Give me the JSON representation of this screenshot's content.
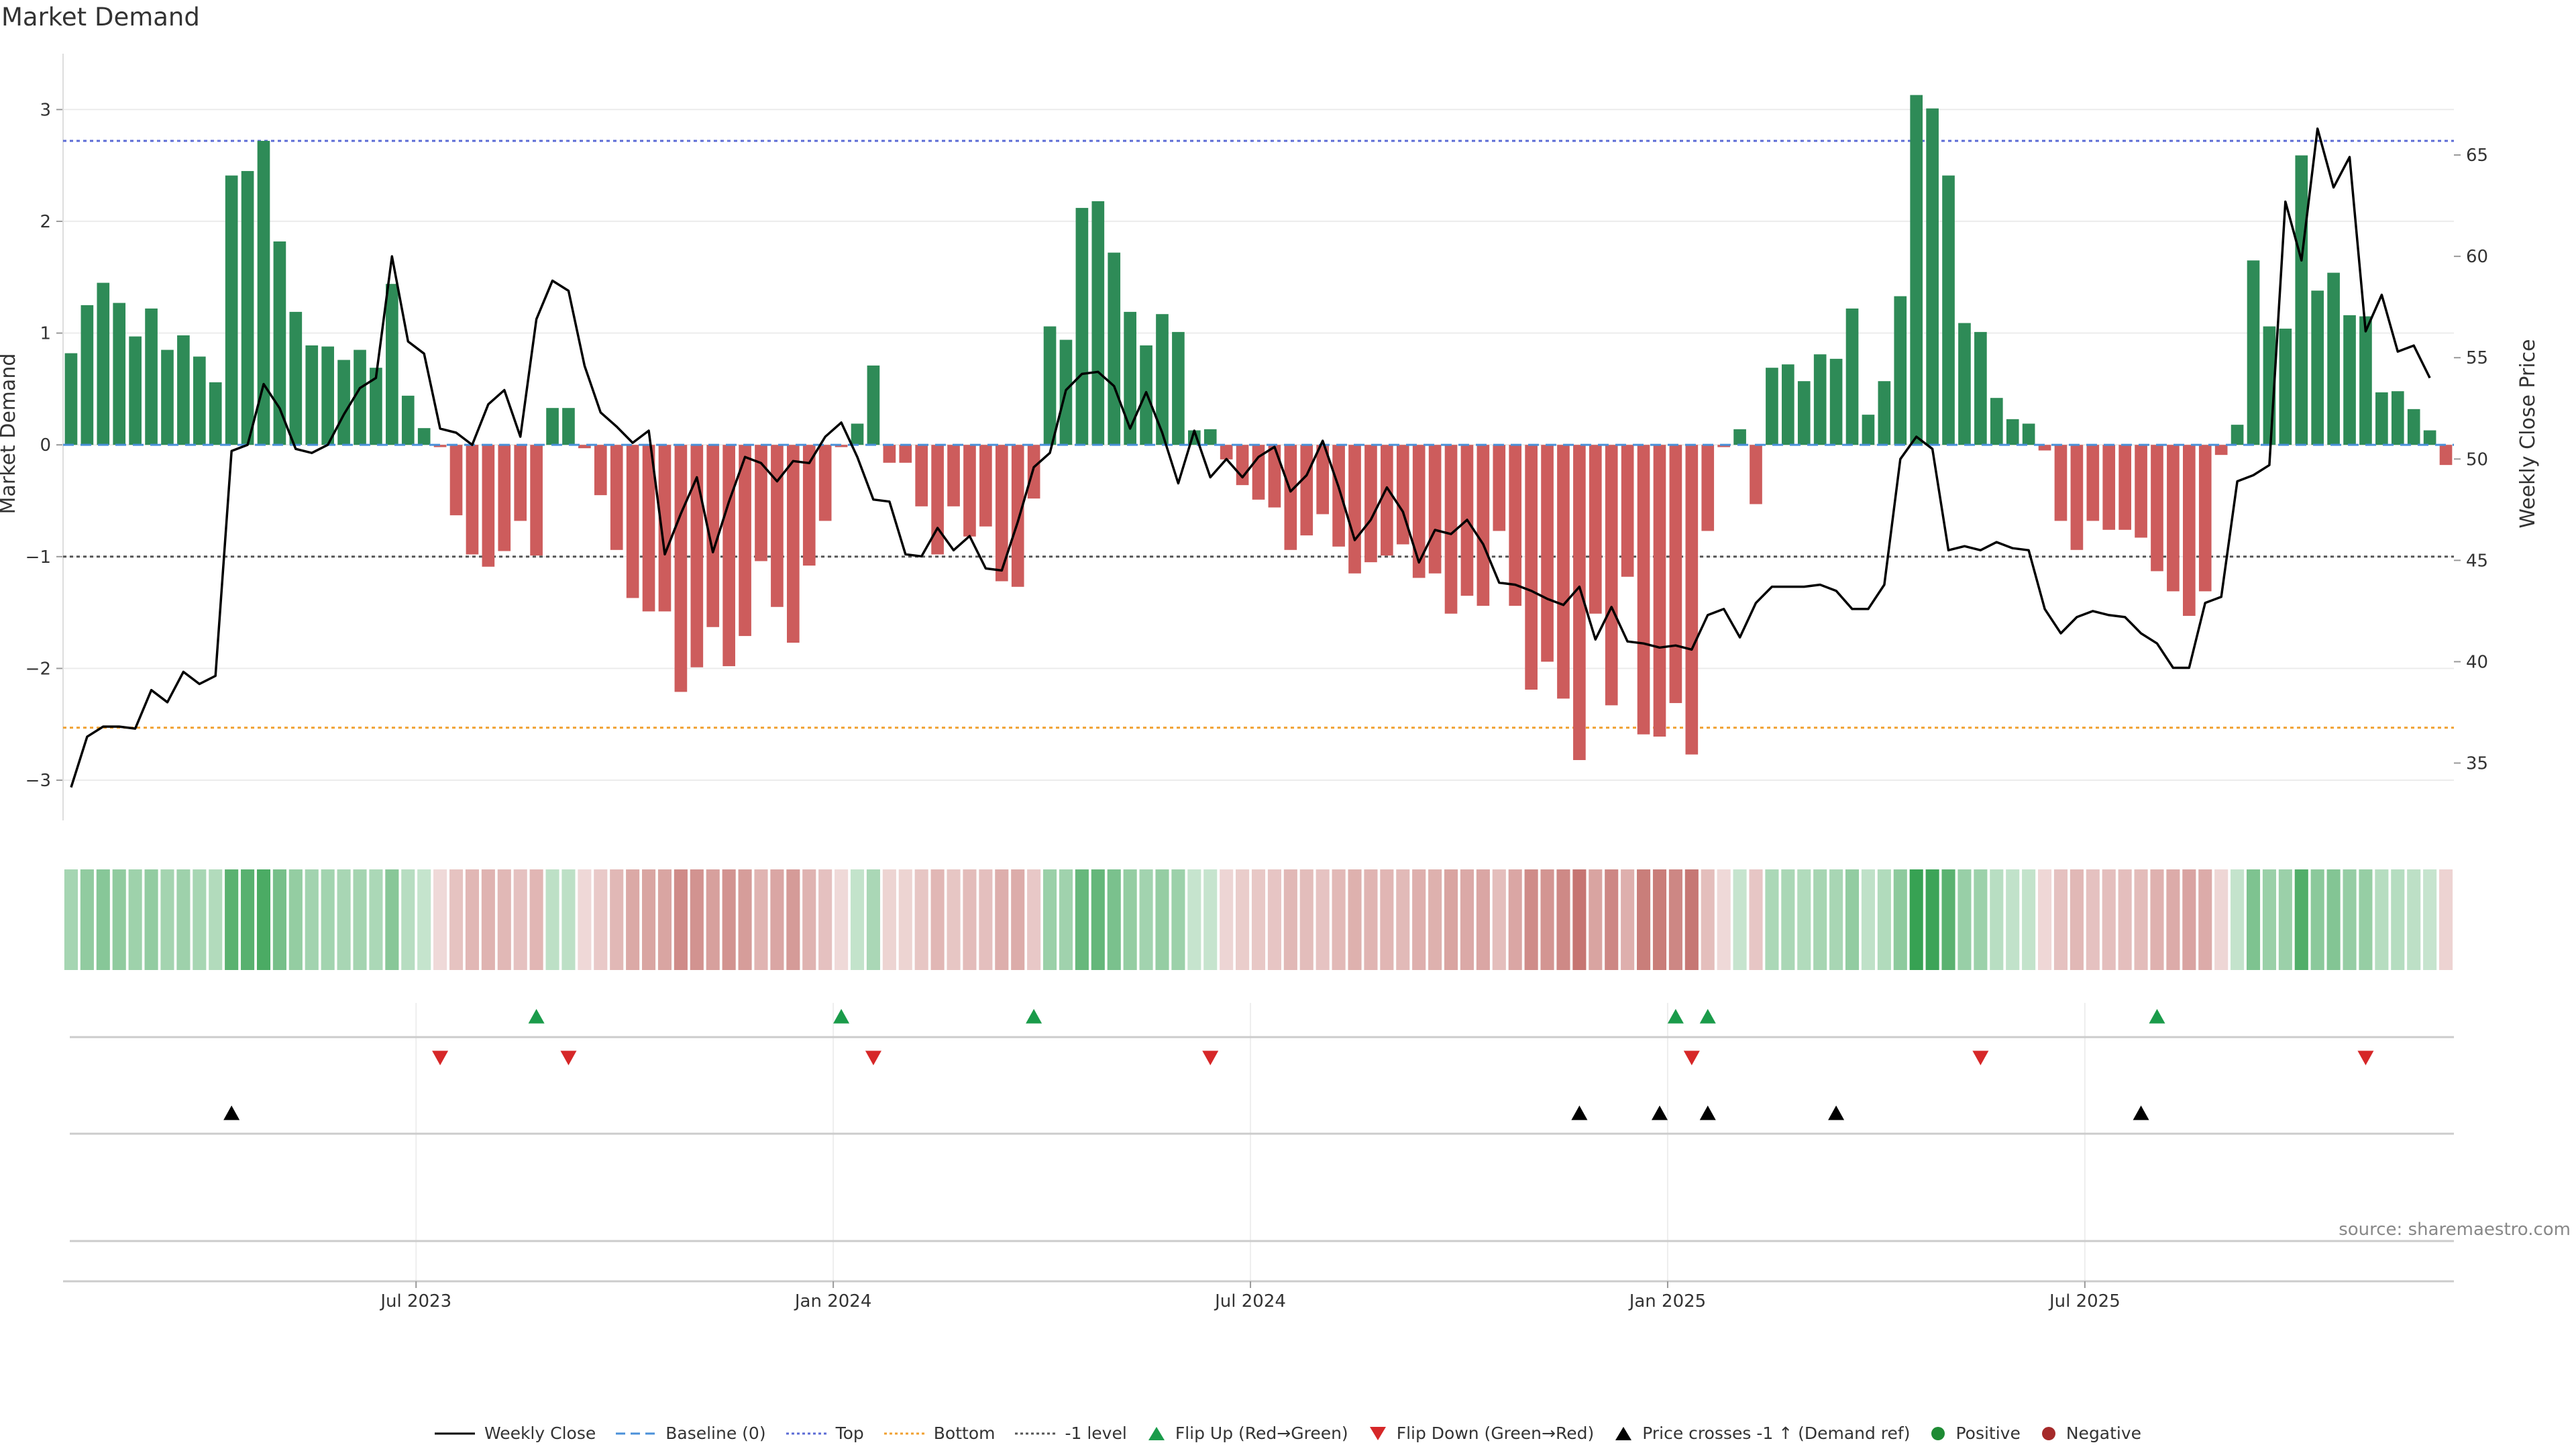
{
  "title": "Market Demand",
  "source_note": "source: sharemaestro.com",
  "colors": {
    "positive": "#2e8b57",
    "negative": "#cd5c5c",
    "price": "#000000",
    "baseline": "#4a90d9",
    "top": "#5b6bd5",
    "bottom": "#f0a030",
    "minus1": "#555555",
    "flip_up": "#1a9b4a",
    "flip_down": "#d62728",
    "cross": "#000000"
  },
  "legend": [
    {
      "label": "Weekly Close",
      "icon": "solid-line-icon"
    },
    {
      "label": "Baseline (0)",
      "icon": "dashed-line-icon"
    },
    {
      "label": "Top",
      "icon": "dotted-line-icon"
    },
    {
      "label": "Bottom",
      "icon": "dotted-line-icon"
    },
    {
      "label": "-1 level",
      "icon": "dotted-line-icon"
    },
    {
      "label": "Flip Up (Red→Green)",
      "icon": "triangle-up-icon"
    },
    {
      "label": "Flip Down (Green→Red)",
      "icon": "triangle-down-icon"
    },
    {
      "label": "Price crosses -1 ↑ (Demand ref)",
      "icon": "triangle-up-icon"
    },
    {
      "label": "Positive",
      "icon": "circle-icon"
    },
    {
      "label": "Negative",
      "icon": "circle-icon"
    }
  ],
  "chart_data": {
    "type": "bar",
    "title": "Market Demand",
    "ylabel": "Market Demand",
    "y2label": "Weekly Close Price",
    "ylim": [
      -3.3,
      3.5
    ],
    "y2lim": [
      32.5,
      70
    ],
    "yticks": [
      "−3",
      "−2",
      "−1",
      "0",
      "1",
      "2",
      "3"
    ],
    "y2ticks": [
      "35",
      "40",
      "45",
      "50",
      "55",
      "60",
      "65"
    ],
    "xticks": [
      {
        "label": "Jul 2023",
        "week": 22
      },
      {
        "label": "Jan 2024",
        "week": 48
      },
      {
        "label": "Jul 2024",
        "week": 74
      },
      {
        "label": "Jan 2025",
        "week": 100
      },
      {
        "label": "Jul 2025",
        "week": 126
      }
    ],
    "levels": {
      "baseline": 0,
      "top": 2.72,
      "bottom": -2.53,
      "minus1": -1
    },
    "demand": [
      0.82,
      1.25,
      1.45,
      1.27,
      0.97,
      1.22,
      0.85,
      0.98,
      0.79,
      0.56,
      2.41,
      2.45,
      2.72,
      1.82,
      1.19,
      0.89,
      0.88,
      0.76,
      0.85,
      0.69,
      1.44,
      0.44,
      0.15,
      -0.02,
      -0.63,
      -0.98,
      -1.09,
      -0.95,
      -0.68,
      -0.99,
      0.33,
      0.33,
      -0.03,
      -0.45,
      -0.94,
      -1.37,
      -1.49,
      -1.49,
      -2.21,
      -1.99,
      -1.63,
      -1.98,
      -1.71,
      -1.04,
      -1.45,
      -1.77,
      -1.08,
      -0.68,
      -0.02,
      0.19,
      0.71,
      -0.16,
      -0.16,
      -0.55,
      -0.98,
      -0.55,
      -0.82,
      -0.73,
      -1.22,
      -1.27,
      -0.48,
      1.06,
      0.94,
      2.12,
      2.18,
      1.72,
      1.19,
      0.89,
      1.17,
      1.01,
      0.13,
      0.14,
      -0.13,
      -0.36,
      -0.49,
      -0.56,
      -0.94,
      -0.81,
      -0.62,
      -0.91,
      -1.15,
      -1.05,
      -0.99,
      -0.89,
      -1.19,
      -1.15,
      -1.51,
      -1.35,
      -1.44,
      -0.77,
      -1.44,
      -2.19,
      -1.94,
      -2.27,
      -2.82,
      -1.51,
      -2.33,
      -1.18,
      -2.59,
      -2.61,
      -2.31,
      -2.77,
      -0.77,
      -0.02,
      0.14,
      -0.53,
      0.69,
      0.72,
      0.57,
      0.81,
      0.77,
      1.22,
      0.27,
      0.57,
      1.33,
      3.13,
      3.01,
      2.41,
      1.09,
      1.01,
      0.42,
      0.23,
      0.19,
      -0.05,
      -0.68,
      -0.94,
      -0.68,
      -0.76,
      -0.76,
      -0.83,
      -1.13,
      -1.31,
      -1.53,
      -1.31,
      -0.09,
      0.18,
      1.65,
      1.06,
      1.04,
      2.59,
      1.38,
      1.54,
      1.16,
      1.15,
      0.47,
      0.48,
      0.32,
      0.13,
      -0.18
    ],
    "price": [
      33.8,
      36.3,
      36.8,
      36.8,
      36.7,
      38.6,
      38.0,
      39.5,
      38.9,
      39.3,
      50.4,
      50.7,
      53.7,
      52.5,
      50.5,
      50.3,
      50.7,
      52.2,
      53.5,
      54.0,
      60.0,
      55.8,
      55.2,
      51.5,
      51.3,
      50.7,
      52.7,
      53.4,
      51.1,
      56.9,
      58.8,
      58.3,
      54.6,
      52.3,
      51.6,
      50.8,
      51.4,
      45.3,
      47.3,
      49.1,
      45.4,
      47.9,
      50.1,
      49.8,
      48.9,
      49.9,
      49.8,
      51.1,
      51.8,
      50.1,
      48.0,
      47.9,
      45.3,
      45.2,
      46.6,
      45.5,
      46.2,
      44.6,
      44.5,
      46.9,
      49.6,
      50.3,
      53.4,
      54.2,
      54.3,
      53.6,
      51.5,
      53.3,
      51.3,
      48.8,
      51.4,
      49.1,
      50.0,
      49.1,
      50.1,
      50.6,
      48.4,
      49.2,
      50.9,
      48.6,
      46.0,
      47.0,
      48.6,
      47.4,
      44.9,
      46.5,
      46.3,
      47.0,
      45.8,
      43.9,
      43.8,
      43.5,
      43.1,
      42.8,
      43.7,
      41.1,
      42.7,
      41.0,
      40.9,
      40.7,
      40.8,
      40.6,
      42.3,
      42.6,
      41.2,
      42.9,
      43.7,
      43.7,
      43.7,
      43.8,
      43.5,
      42.6,
      42.6,
      43.8,
      50.0,
      51.1,
      50.5,
      45.5,
      45.7,
      45.5,
      45.9,
      45.6,
      45.5,
      42.6,
      41.4,
      42.2,
      42.5,
      42.3,
      42.2,
      41.4,
      40.9,
      39.7,
      39.7,
      42.9,
      43.2,
      48.9,
      49.2,
      49.7,
      62.7,
      59.8,
      66.3,
      63.4,
      64.9,
      56.3,
      58.1,
      55.3,
      55.6,
      54.0
    ],
    "flip_up_weeks": [
      29,
      48,
      60,
      100,
      102,
      130
    ],
    "flip_down_weeks": [
      23,
      31,
      50,
      71,
      101,
      119,
      143
    ],
    "price_cross_weeks": [
      10,
      94,
      99,
      102,
      110,
      129
    ]
  }
}
